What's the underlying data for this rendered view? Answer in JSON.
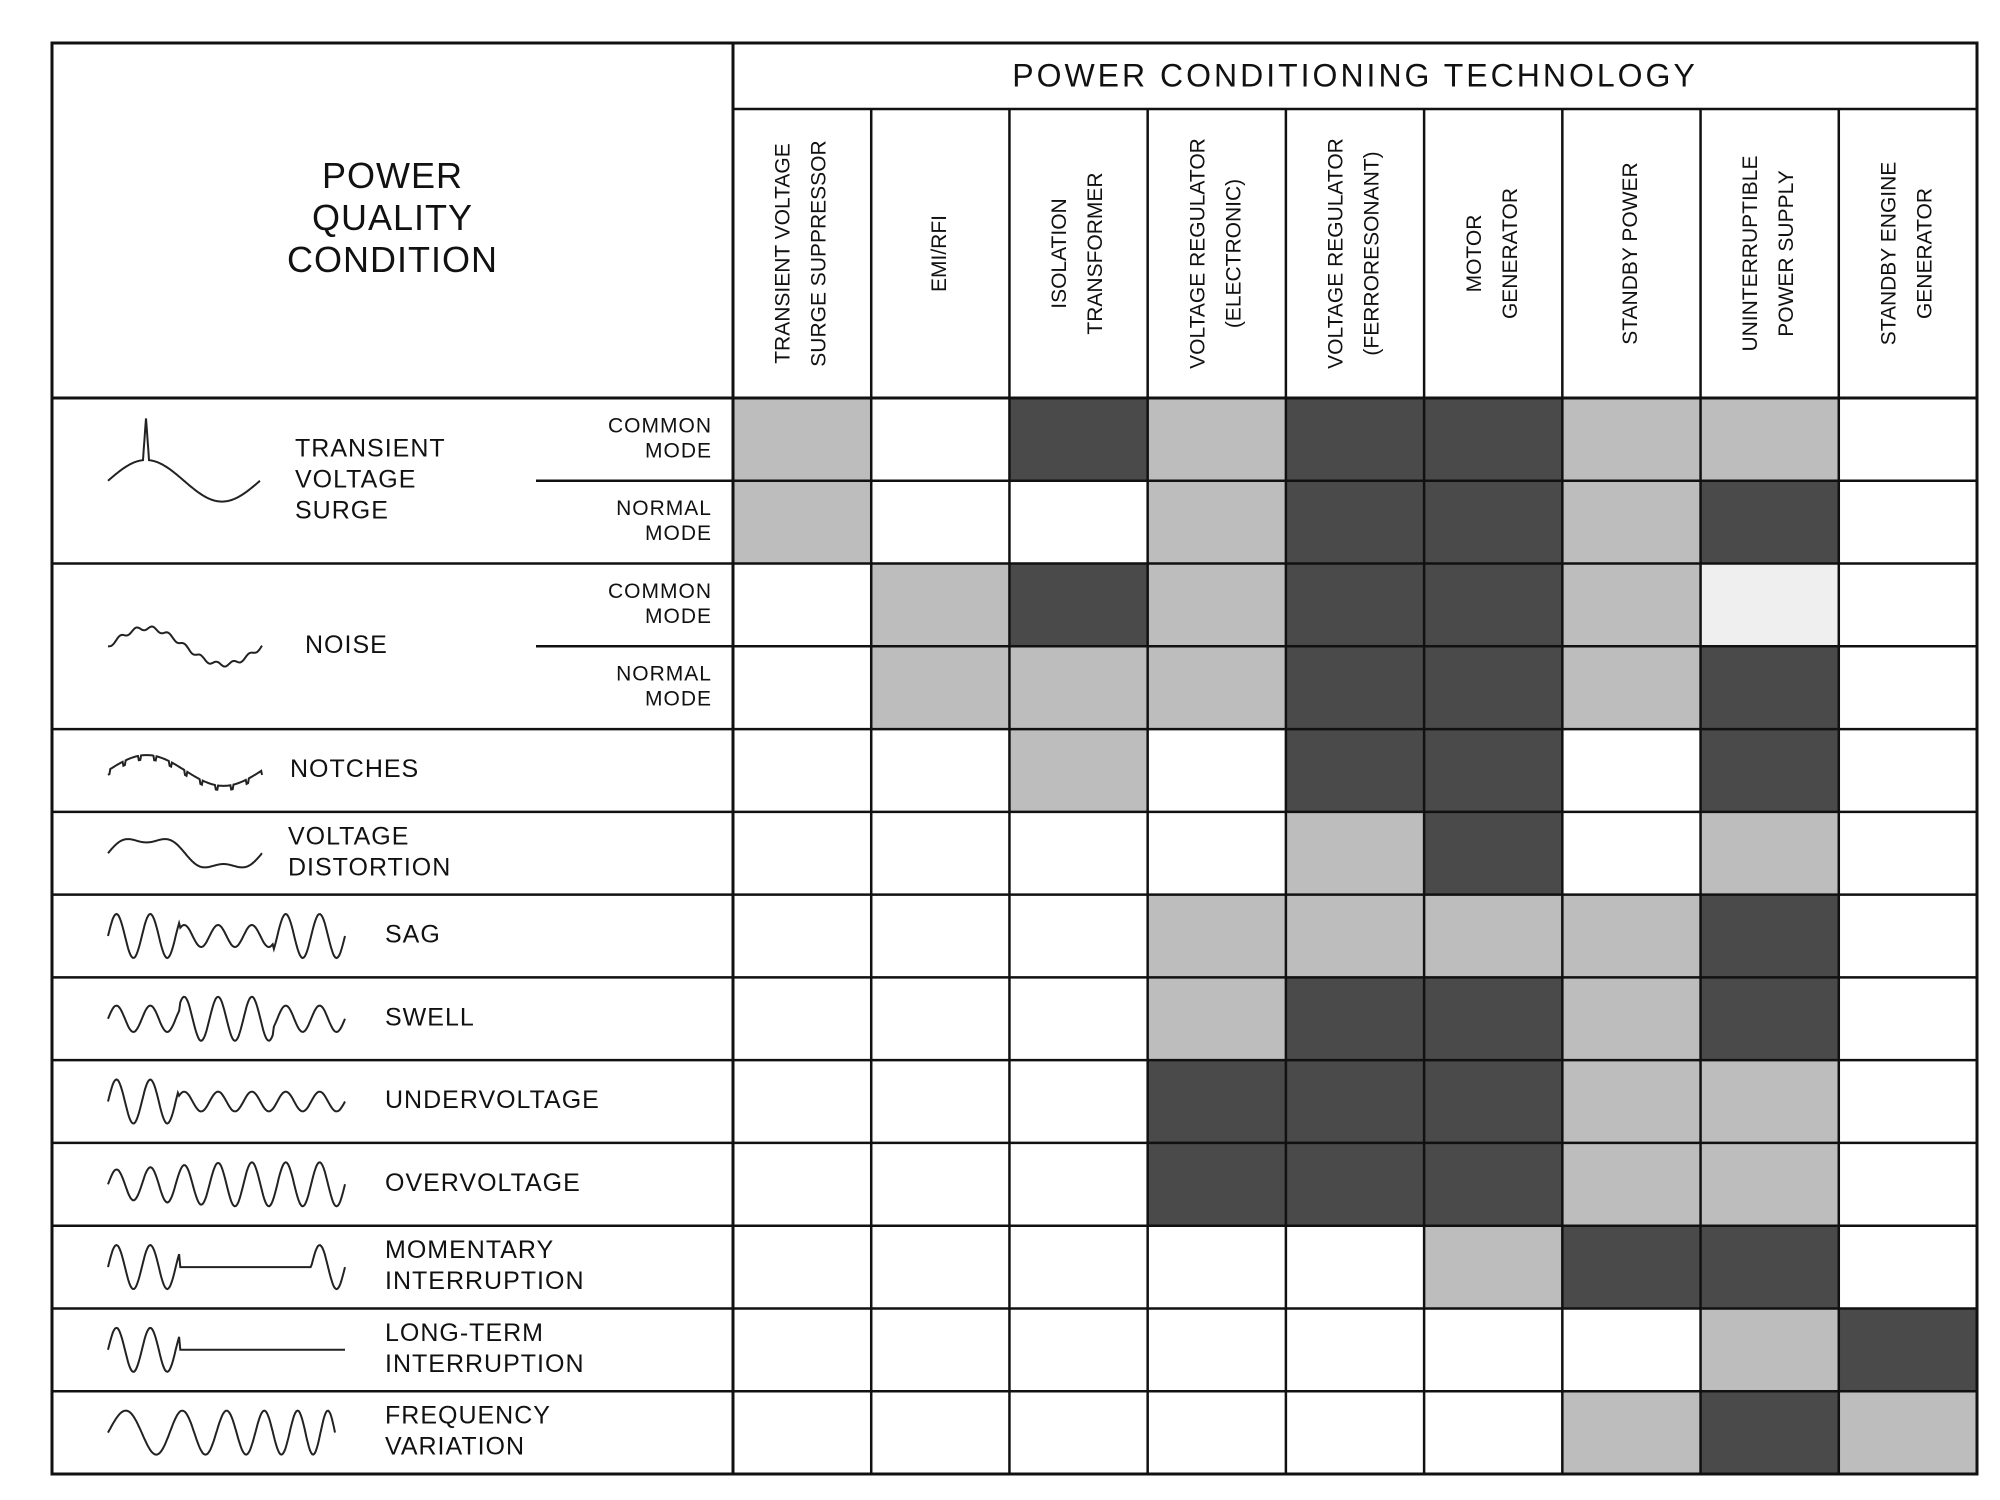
{
  "header": {
    "condition_title": [
      "POWER",
      "QUALITY",
      "CONDITION"
    ],
    "technology_title": "POWER CONDITIONING TECHNOLOGY"
  },
  "columns": [
    [
      "TRANSIENT VOLTAGE",
      "SURGE SUPPRESSOR"
    ],
    [
      "EMI/RFI"
    ],
    [
      "ISOLATION",
      "TRANSFORMER"
    ],
    [
      "VOLTAGE REGULATOR",
      "(ELECTRONIC)"
    ],
    [
      "VOLTAGE REGULATOR",
      "(FERRORESONANT)"
    ],
    [
      "MOTOR",
      "GENERATOR"
    ],
    [
      "STANDBY POWER"
    ],
    [
      "UNINTERRUPTIBLE",
      "POWER SUPPLY"
    ],
    [
      "STANDBY ENGINE",
      "GENERATOR"
    ]
  ],
  "conditions": [
    {
      "label": [
        "TRANSIENT",
        "VOLTAGE",
        "SURGE"
      ],
      "modes": [
        {
          "label": [
            "COMMON",
            "MODE"
          ],
          "cells": [
            "#bdbdbd",
            "#ffffff",
            "#4a4a4a",
            "#bdbdbd",
            "#4a4a4a",
            "#4a4a4a",
            "#bdbdbd",
            "#bdbdbd",
            "#ffffff"
          ]
        },
        {
          "label": [
            "NORMAL",
            "MODE"
          ],
          "cells": [
            "#bdbdbd",
            "#ffffff",
            "#ffffff",
            "#bdbdbd",
            "#4a4a4a",
            "#4a4a4a",
            "#bdbdbd",
            "#4a4a4a",
            "#ffffff"
          ]
        }
      ]
    },
    {
      "label": [
        "NOISE"
      ],
      "modes": [
        {
          "label": [
            "COMMON",
            "MODE"
          ],
          "cells": [
            "#ffffff",
            "#bdbdbd",
            "#4a4a4a",
            "#bdbdbd",
            "#4a4a4a",
            "#4a4a4a",
            "#bdbdbd",
            "#efefef",
            "#ffffff"
          ]
        },
        {
          "label": [
            "NORMAL",
            "MODE"
          ],
          "cells": [
            "#ffffff",
            "#bdbdbd",
            "#bdbdbd",
            "#bdbdbd",
            "#4a4a4a",
            "#4a4a4a",
            "#bdbdbd",
            "#4a4a4a",
            "#ffffff"
          ]
        }
      ]
    },
    {
      "label": [
        "NOTCHES"
      ],
      "cells": [
        "#ffffff",
        "#ffffff",
        "#bdbdbd",
        "#ffffff",
        "#4a4a4a",
        "#4a4a4a",
        "#ffffff",
        "#4a4a4a",
        "#ffffff"
      ]
    },
    {
      "label": [
        "VOLTAGE",
        "DISTORTION"
      ],
      "cells": [
        "#ffffff",
        "#ffffff",
        "#ffffff",
        "#ffffff",
        "#bdbdbd",
        "#4a4a4a",
        "#ffffff",
        "#bdbdbd",
        "#ffffff"
      ]
    },
    {
      "label": [
        "SAG"
      ],
      "cells": [
        "#ffffff",
        "#ffffff",
        "#ffffff",
        "#bdbdbd",
        "#bdbdbd",
        "#bdbdbd",
        "#bdbdbd",
        "#4a4a4a",
        "#ffffff"
      ]
    },
    {
      "label": [
        "SWELL"
      ],
      "cells": [
        "#ffffff",
        "#ffffff",
        "#ffffff",
        "#bdbdbd",
        "#4a4a4a",
        "#4a4a4a",
        "#bdbdbd",
        "#4a4a4a",
        "#ffffff"
      ]
    },
    {
      "label": [
        "UNDERVOLTAGE"
      ],
      "cells": [
        "#ffffff",
        "#ffffff",
        "#ffffff",
        "#4a4a4a",
        "#4a4a4a",
        "#4a4a4a",
        "#bdbdbd",
        "#bdbdbd",
        "#ffffff"
      ]
    },
    {
      "label": [
        "OVERVOLTAGE"
      ],
      "cells": [
        "#ffffff",
        "#ffffff",
        "#ffffff",
        "#4a4a4a",
        "#4a4a4a",
        "#4a4a4a",
        "#bdbdbd",
        "#bdbdbd",
        "#ffffff"
      ]
    },
    {
      "label": [
        "MOMENTARY",
        "INTERRUPTION"
      ],
      "cells": [
        "#ffffff",
        "#ffffff",
        "#ffffff",
        "#ffffff",
        "#ffffff",
        "#bdbdbd",
        "#4a4a4a",
        "#4a4a4a",
        "#ffffff"
      ]
    },
    {
      "label": [
        "LONG-TERM",
        "INTERRUPTION"
      ],
      "cells": [
        "#ffffff",
        "#ffffff",
        "#ffffff",
        "#ffffff",
        "#ffffff",
        "#ffffff",
        "#ffffff",
        "#bdbdbd",
        "#4a4a4a"
      ]
    },
    {
      "label": [
        "FREQUENCY",
        "VARIATION"
      ],
      "cells": [
        "#ffffff",
        "#ffffff",
        "#ffffff",
        "#ffffff",
        "#ffffff",
        "#ffffff",
        "#bdbdbd",
        "#4a4a4a",
        "#bdbdbd"
      ]
    }
  ]
}
